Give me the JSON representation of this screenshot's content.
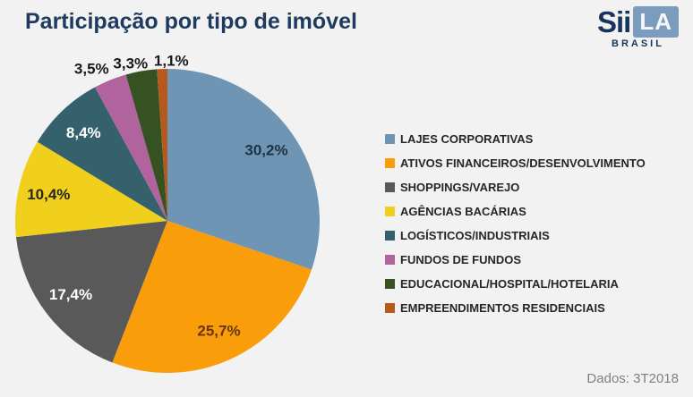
{
  "title": "Participação por tipo de imóvel",
  "logo": {
    "brand_primary": "Sii",
    "brand_boxed": "LA",
    "subtitle": "BRASIL"
  },
  "footnote": "Dados: 3T2018",
  "colors": {
    "background": "#f2f2f2",
    "title_text": "#1f3a5f",
    "legend_text": "#262626",
    "footnote_text": "#808080",
    "logo_navy": "#16355c",
    "logo_box": "#7b9cbc"
  },
  "chart_data": {
    "type": "pie",
    "title": "Participação por tipo de imóvel",
    "unit": "%",
    "decimal_separator": ",",
    "start_angle_deg": 0,
    "direction": "clockwise",
    "legend_position": "right",
    "data_period": "3T2018",
    "series": [
      {
        "name": "LAJES CORPORATIVAS",
        "value": 30.2,
        "color": "#6e95b4",
        "label_color": "#1e3345",
        "label_text": "30,2%"
      },
      {
        "name": "ATIVOS FINANCEIROS/DESENVOLVIMENTO",
        "value": 25.7,
        "color": "#fa9d0b",
        "label_color": "#68360a",
        "label_text": "25,7%"
      },
      {
        "name": "SHOPPINGS/VAREJO",
        "value": 17.4,
        "color": "#595959",
        "label_color": "#ffffff",
        "label_text": "17,4%"
      },
      {
        "name": "AGÊNCIAS BACÁRIAS",
        "value": 10.4,
        "color": "#f0cf1d",
        "label_color": "#262626",
        "label_text": "10,4%"
      },
      {
        "name": "LOGÍSTICOS/INDUSTRIAIS",
        "value": 8.4,
        "color": "#35616d",
        "label_color": "#ffffff",
        "label_text": "8,4%"
      },
      {
        "name": "FUNDOS DE FUNDOS",
        "value": 3.5,
        "color": "#b0639c",
        "label_color": "#1a1a1a",
        "label_text": "3,5%"
      },
      {
        "name": "EDUCACIONAL/HOSPITAL/HOTELARIA",
        "value": 3.3,
        "color": "#375222",
        "label_color": "#1a1a1a",
        "label_text": "3,3%"
      },
      {
        "name": "EMPREENDIMENTOS RESIDENCIAIS",
        "value": 1.1,
        "color": "#b55a1b",
        "label_color": "#1a1a1a",
        "label_text": "1,1%"
      }
    ]
  }
}
